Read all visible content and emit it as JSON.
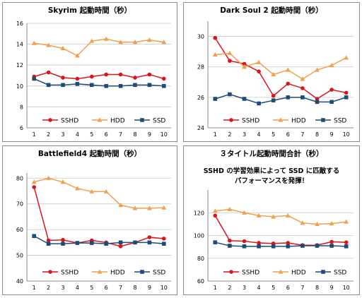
{
  "chart_data": [
    {
      "type": "line",
      "title": "Skyrim 起動時間（秒）",
      "x": [
        1,
        2,
        3,
        4,
        5,
        6,
        7,
        8,
        9,
        10
      ],
      "ylim": [
        6,
        16
      ],
      "yticks": [
        6,
        8,
        10,
        12,
        14,
        16
      ],
      "series": [
        {
          "name": "SSHD",
          "color": "#d9151b",
          "marker": "circle",
          "values": [
            10.9,
            11.3,
            10.8,
            10.7,
            10.9,
            11.1,
            11.1,
            10.8,
            11.1,
            10.7
          ]
        },
        {
          "name": "HDD",
          "color": "#f0a04f",
          "marker": "triangle",
          "values": [
            14.1,
            13.9,
            13.6,
            12.9,
            14.3,
            14.5,
            14.2,
            14.2,
            14.4,
            14.2
          ]
        },
        {
          "name": "SSD",
          "color": "#1f4b78",
          "marker": "square",
          "values": [
            10.7,
            10.1,
            10.1,
            10.2,
            10.1,
            10.0,
            10.0,
            10.1,
            10.1,
            10.0
          ]
        }
      ],
      "grid": true,
      "legend": "bottom"
    },
    {
      "type": "line",
      "title": "Dark Soul 2 起動時間（秒）",
      "x": [
        1,
        2,
        3,
        4,
        5,
        6,
        7,
        8,
        9,
        10
      ],
      "ylim": [
        24,
        31
      ],
      "yticks": [
        24,
        26,
        28,
        30
      ],
      "series": [
        {
          "name": "SSHD",
          "color": "#d9151b",
          "marker": "circle",
          "values": [
            29.9,
            28.4,
            28.2,
            27.7,
            26.1,
            26.9,
            26.6,
            25.9,
            26.5,
            26.3
          ]
        },
        {
          "name": "HDD",
          "color": "#f0a04f",
          "marker": "triangle",
          "values": [
            28.8,
            28.9,
            28.0,
            28.3,
            27.5,
            27.8,
            27.2,
            27.8,
            28.1,
            28.6
          ]
        },
        {
          "name": "SSD",
          "color": "#1f4b78",
          "marker": "square",
          "values": [
            25.9,
            26.2,
            25.9,
            25.6,
            25.8,
            26.0,
            26.0,
            25.7,
            25.7,
            26.0
          ]
        }
      ],
      "grid": true,
      "legend": "bottom"
    },
    {
      "type": "line",
      "title": "Battlefield4 起動時間（秒）",
      "x": [
        1,
        2,
        3,
        4,
        5,
        6,
        7,
        8,
        9,
        10
      ],
      "ylim": [
        40,
        82
      ],
      "yticks": [
        40,
        50,
        60,
        70,
        80
      ],
      "series": [
        {
          "name": "SSHD",
          "color": "#d9151b",
          "marker": "circle",
          "values": [
            76.5,
            55.8,
            56.0,
            54.8,
            55.8,
            55.0,
            53.5,
            55.0,
            57.0,
            56.5
          ]
        },
        {
          "name": "HDD",
          "color": "#f0a04f",
          "marker": "triangle",
          "values": [
            78.5,
            80.0,
            78.5,
            76.0,
            74.8,
            74.8,
            69.5,
            68.3,
            68.3,
            68.5
          ]
        },
        {
          "name": "SSD",
          "color": "#1f4b78",
          "marker": "square",
          "values": [
            57.5,
            54.5,
            54.5,
            54.8,
            54.8,
            54.5,
            55.0,
            55.0,
            55.0,
            54.5
          ]
        }
      ],
      "grid": true,
      "legend": "bottom"
    },
    {
      "type": "line",
      "title": "３タイトル起動時間合計（秒）",
      "annotation_lines": [
        "SSHD の学習効果によって SSD に匹敵する",
        "パフォーマンスを発揮！"
      ],
      "x": [
        1,
        2,
        3,
        4,
        5,
        6,
        7,
        8,
        9,
        10
      ],
      "ylim": [
        60,
        140
      ],
      "yticks": [
        60,
        80,
        100,
        120
      ],
      "series": [
        {
          "name": "SSHD",
          "color": "#d9151b",
          "marker": "circle",
          "values": [
            117.5,
            95.5,
            95.0,
            93.5,
            93.0,
            93.5,
            91.5,
            91.5,
            94.5,
            94.0
          ]
        },
        {
          "name": "HDD",
          "color": "#f0a04f",
          "marker": "triangle",
          "values": [
            121.5,
            123.0,
            120.0,
            117.5,
            116.5,
            117.5,
            111.0,
            110.0,
            110.5,
            112.0
          ]
        },
        {
          "name": "SSD",
          "color": "#1f4b78",
          "marker": "square",
          "values": [
            94.0,
            91.0,
            90.5,
            90.5,
            90.5,
            90.5,
            91.0,
            91.0,
            91.0,
            90.5
          ]
        }
      ],
      "grid": true,
      "legend": "bottom"
    }
  ]
}
